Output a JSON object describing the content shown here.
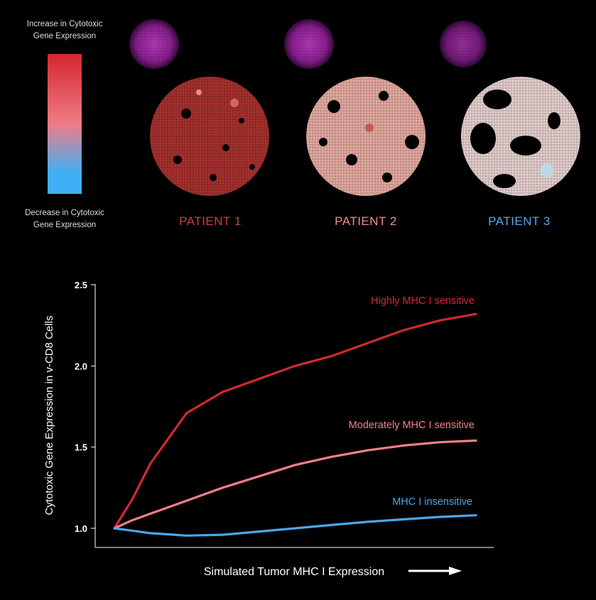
{
  "legend": {
    "top_label": "Increase in Cytotoxic\nGene Expression",
    "bottom_label": "Decrease in Cytotoxic\nGene Expression",
    "color_high": "#d3262e",
    "color_mid": "#f07b86",
    "color_low": "#3fb0f5"
  },
  "patients": [
    {
      "label": "PATIENT 1",
      "color": "#c8414a"
    },
    {
      "label": "PATIENT 2",
      "color": "#ef8a95"
    },
    {
      "label": "PATIENT 3",
      "color": "#5aa8e6"
    }
  ],
  "chart_data": {
    "type": "line",
    "xlabel": "Simulated Tumor MHC I Expression",
    "ylabel": "Cytotoxic Gene Expression in v-CD8 Cells",
    "ylim": [
      0.9,
      2.5
    ],
    "yticks": [
      "2.5",
      "2.0",
      "1.5",
      "1.0"
    ],
    "x": [
      0,
      0.05,
      0.1,
      0.2,
      0.3,
      0.4,
      0.5,
      0.6,
      0.7,
      0.8,
      0.9,
      1.0
    ],
    "series": [
      {
        "name": "Highly MHC I sensitive",
        "color": "#d02a30",
        "values": [
          1.0,
          1.18,
          1.4,
          1.71,
          1.84,
          1.92,
          2.0,
          2.06,
          2.14,
          2.22,
          2.28,
          2.32
        ]
      },
      {
        "name": "Moderately MHC I sensitive",
        "color": "#f37f88",
        "values": [
          1.0,
          1.05,
          1.09,
          1.17,
          1.25,
          1.32,
          1.39,
          1.44,
          1.48,
          1.51,
          1.53,
          1.54
        ]
      },
      {
        "name": "MHC I insensitive",
        "color": "#4aa6ec",
        "values": [
          1.0,
          0.985,
          0.97,
          0.955,
          0.96,
          0.98,
          1.0,
          1.02,
          1.04,
          1.055,
          1.07,
          1.08
        ]
      }
    ]
  }
}
